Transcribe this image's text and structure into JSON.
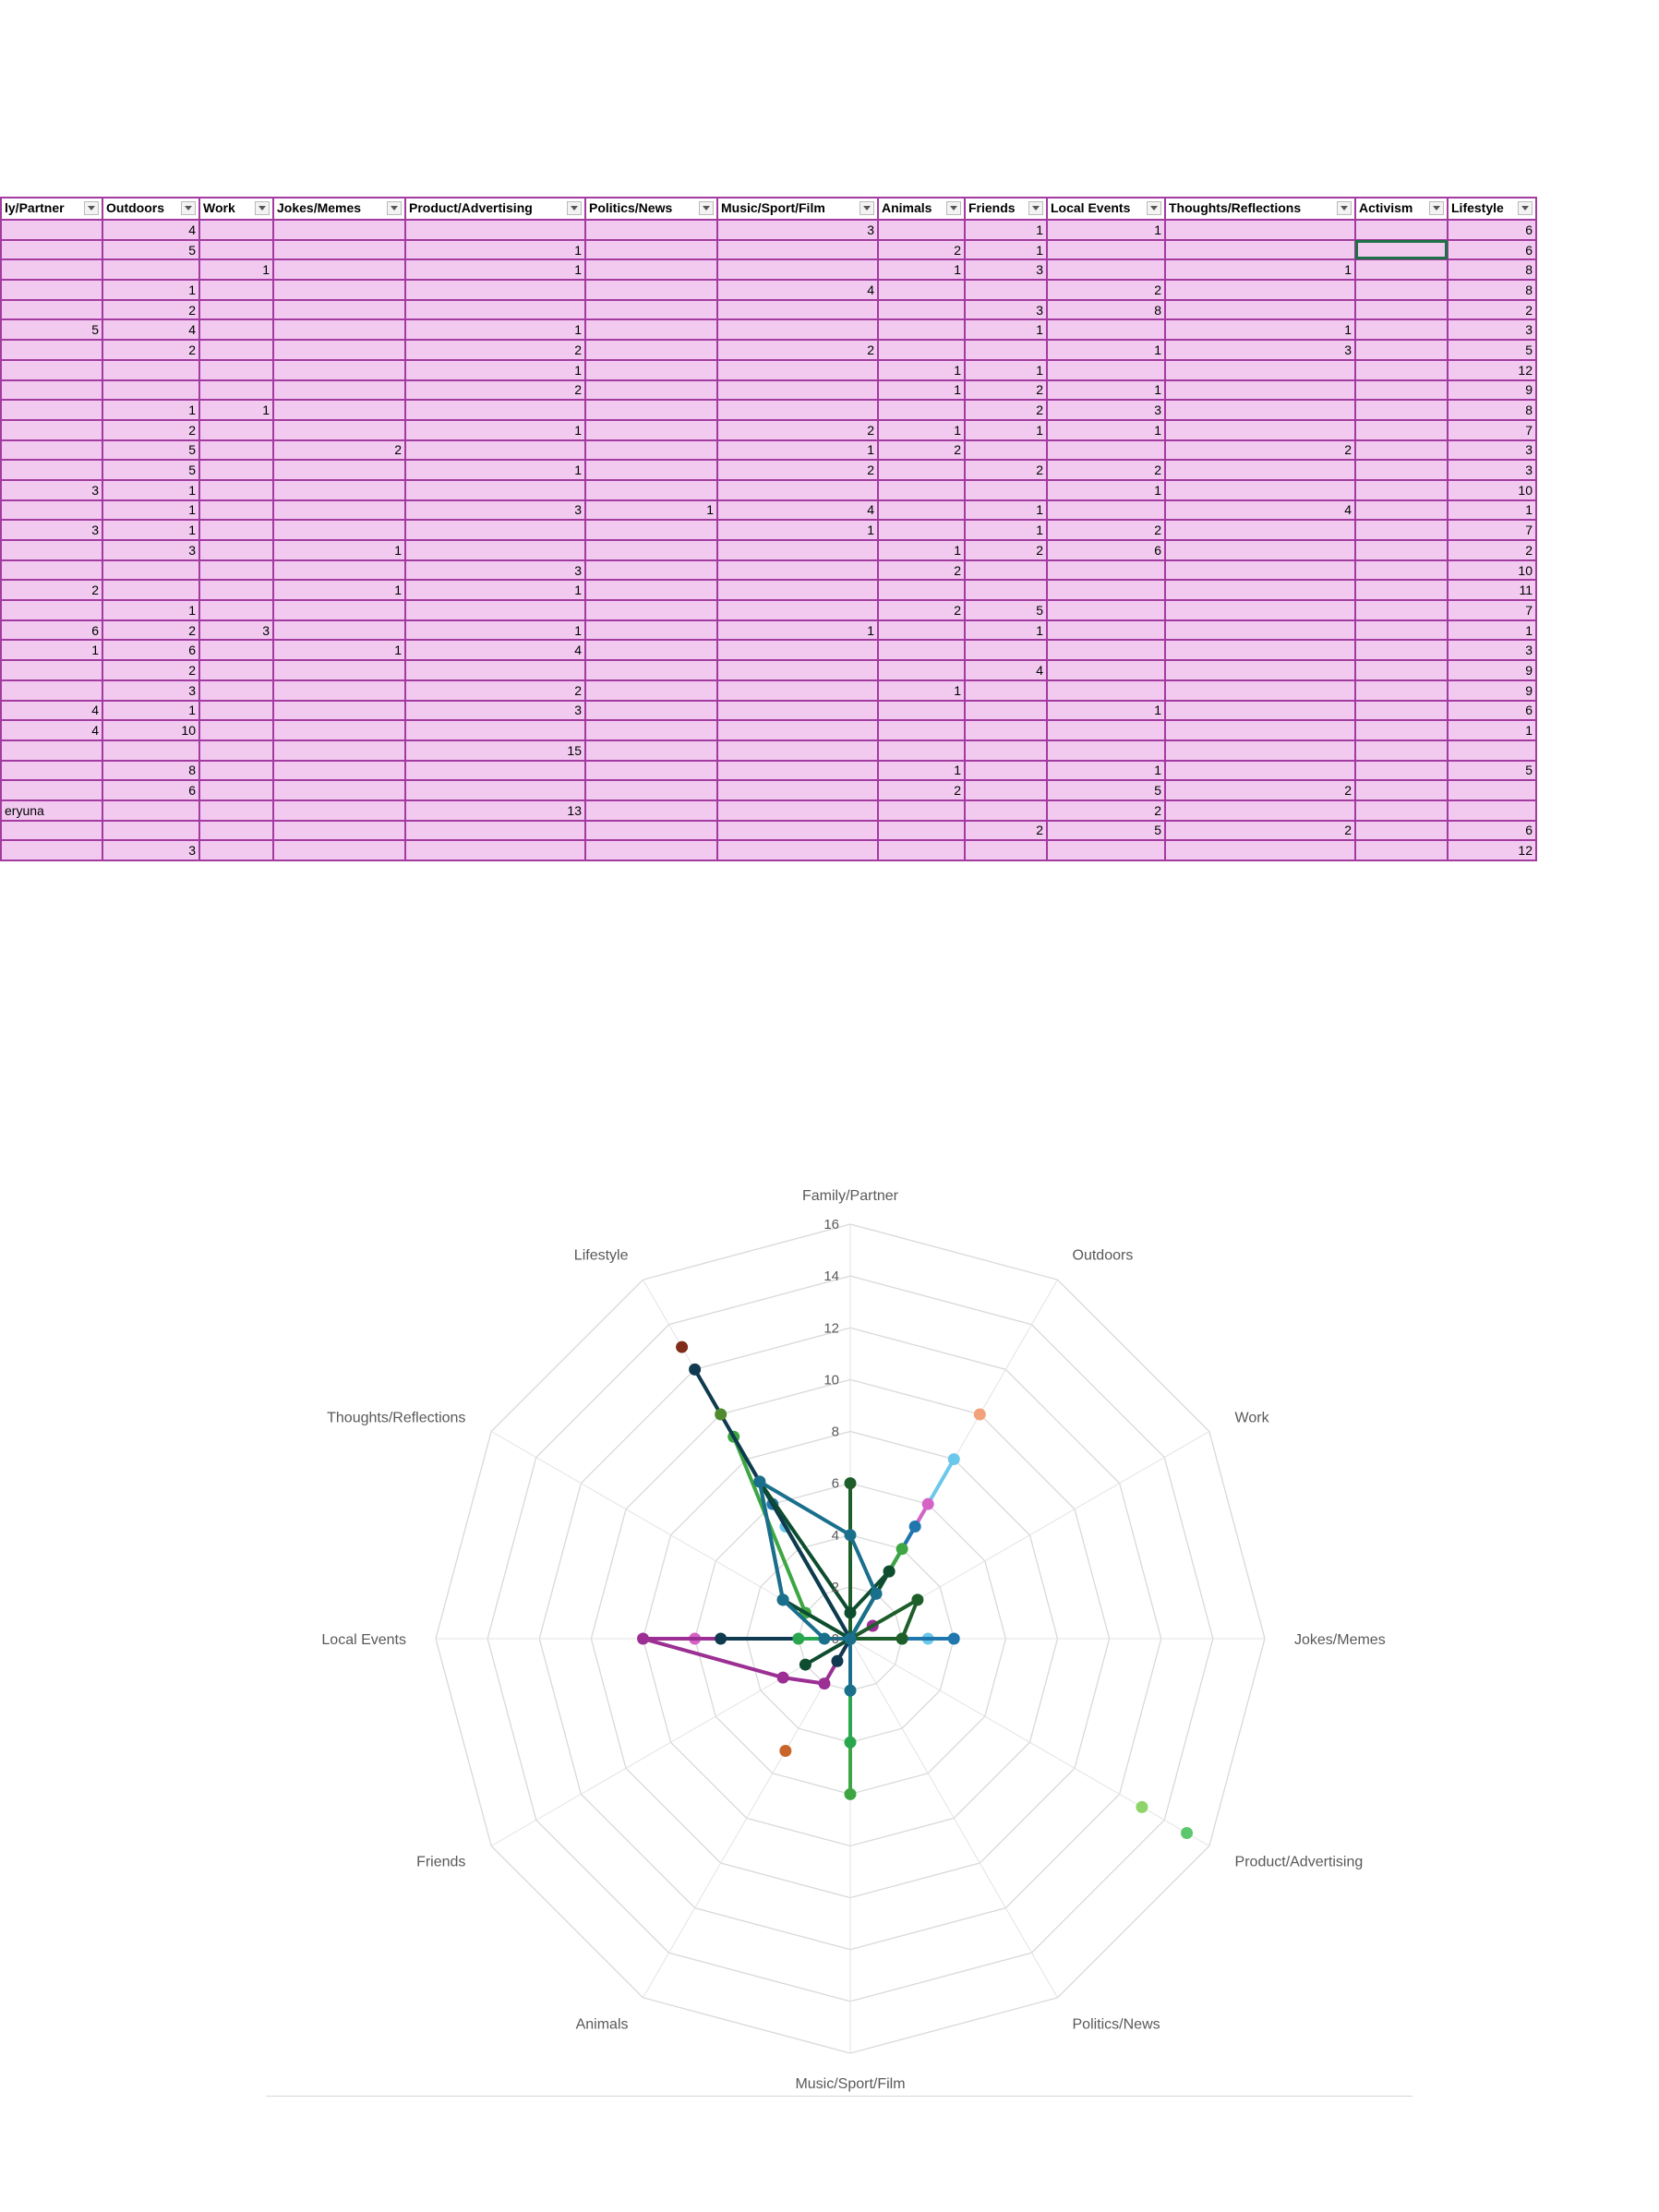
{
  "sheet": {
    "headers": [
      "ly/Partner",
      "Outdoors",
      "Work",
      "Jokes/Memes",
      "Product/Advertising",
      "Politics/News",
      "Music/Sport/Film",
      "Animals",
      "Friends",
      "Local Events",
      "Thoughts/Reflections",
      "Activism",
      "Lifestyle"
    ],
    "rows": [
      [
        "",
        "4",
        "",
        "",
        "",
        "",
        "3",
        "",
        "1",
        "1",
        "",
        "",
        "6"
      ],
      [
        "",
        "5",
        "",
        "",
        "1",
        "",
        "",
        "2",
        "1",
        "",
        "",
        "",
        "6"
      ],
      [
        "",
        "",
        "1",
        "",
        "1",
        "",
        "",
        "1",
        "3",
        "",
        "1",
        "",
        "8"
      ],
      [
        "",
        "1",
        "",
        "",
        "",
        "",
        "4",
        "",
        "",
        "2",
        "",
        "",
        "8"
      ],
      [
        "",
        "2",
        "",
        "",
        "",
        "",
        "",
        "",
        "3",
        "8",
        "",
        "",
        "2"
      ],
      [
        "5",
        "4",
        "",
        "",
        "1",
        "",
        "",
        "",
        "1",
        "",
        "1",
        "",
        "3"
      ],
      [
        "",
        "2",
        "",
        "",
        "2",
        "",
        "2",
        "",
        "",
        "1",
        "3",
        "",
        "5"
      ],
      [
        "",
        "",
        "",
        "",
        "1",
        "",
        "",
        "1",
        "1",
        "",
        "",
        "",
        "12"
      ],
      [
        "",
        "",
        "",
        "",
        "2",
        "",
        "",
        "1",
        "2",
        "1",
        "",
        "",
        "9"
      ],
      [
        "",
        "1",
        "1",
        "",
        "",
        "",
        "",
        "",
        "2",
        "3",
        "",
        "",
        "8"
      ],
      [
        "",
        "2",
        "",
        "",
        "1",
        "",
        "2",
        "1",
        "1",
        "1",
        "",
        "",
        "7"
      ],
      [
        "",
        "5",
        "",
        "2",
        "",
        "",
        "1",
        "2",
        "",
        "",
        "2",
        "",
        "3"
      ],
      [
        "",
        "5",
        "",
        "",
        "1",
        "",
        "2",
        "",
        "2",
        "2",
        "",
        "",
        "3"
      ],
      [
        "3",
        "1",
        "",
        "",
        "",
        "",
        "",
        "",
        "",
        "1",
        "",
        "",
        "10"
      ],
      [
        "",
        "1",
        "",
        "",
        "3",
        "1",
        "4",
        "",
        "1",
        "",
        "4",
        "",
        "1"
      ],
      [
        "3",
        "1",
        "",
        "",
        "",
        "",
        "1",
        "",
        "1",
        "2",
        "",
        "",
        "7"
      ],
      [
        "",
        "3",
        "",
        "1",
        "",
        "",
        "",
        "1",
        "2",
        "6",
        "",
        "",
        "2"
      ],
      [
        "",
        "",
        "",
        "",
        "3",
        "",
        "",
        "2",
        "",
        "",
        "",
        "",
        "10"
      ],
      [
        "2",
        "",
        "",
        "1",
        "1",
        "",
        "",
        "",
        "",
        "",
        "",
        "",
        "11"
      ],
      [
        "",
        "1",
        "",
        "",
        "",
        "",
        "",
        "2",
        "5",
        "",
        "",
        "",
        "7"
      ],
      [
        "6",
        "2",
        "3",
        "",
        "1",
        "",
        "1",
        "",
        "1",
        "",
        "",
        "",
        "1"
      ],
      [
        "1",
        "6",
        "",
        "1",
        "4",
        "",
        "",
        "",
        "",
        "",
        "",
        "",
        "3"
      ],
      [
        "",
        "2",
        "",
        "",
        "",
        "",
        "",
        "",
        "4",
        "",
        "",
        "",
        "9"
      ],
      [
        "",
        "3",
        "",
        "",
        "2",
        "",
        "",
        "1",
        "",
        "",
        "",
        "",
        "9"
      ],
      [
        "4",
        "1",
        "",
        "",
        "3",
        "",
        "",
        "",
        "",
        "1",
        "",
        "",
        "6"
      ],
      [
        "4",
        "10",
        "",
        "",
        "",
        "",
        "",
        "",
        "",
        "",
        "",
        "",
        "1"
      ],
      [
        "",
        "",
        "",
        "",
        "15",
        "",
        "",
        "",
        "",
        "",
        "",
        "",
        ""
      ],
      [
        "",
        "8",
        "",
        "",
        "",
        "",
        "",
        "1",
        "",
        "1",
        "",
        "",
        "5"
      ],
      [
        "",
        "6",
        "",
        "",
        "",
        "",
        "",
        "2",
        "",
        "5",
        "2",
        "",
        ""
      ],
      [
        "eryuna",
        "",
        "",
        "",
        "13",
        "",
        "",
        "",
        "",
        "2",
        "",
        "",
        ""
      ],
      [
        "",
        "",
        "",
        "",
        "",
        "",
        "",
        "",
        "2",
        "5",
        "2",
        "",
        "6"
      ],
      [
        "",
        "3",
        "",
        "",
        "",
        "",
        "",
        "",
        "",
        "",
        "",
        "",
        "12"
      ]
    ],
    "selected_cell": {
      "row": 1,
      "col": 11
    }
  },
  "chart_data": {
    "type": "radar",
    "categories": [
      "Family/Partner",
      "Outdoors",
      "Work",
      "Jokes/Memes",
      "Product/Advertising",
      "Politics/News",
      "Music/Sport/Film",
      "Animals",
      "Friends",
      "Local Events",
      "Thoughts/Reflections",
      "Lifestyle"
    ],
    "ticks": [
      0,
      2,
      4,
      6,
      8,
      10,
      12,
      14,
      16
    ],
    "rmax": 16,
    "grid": true,
    "legend": "none",
    "series": [
      {
        "color": "#f2a27a",
        "values": [
          0,
          10,
          0,
          0,
          0,
          0,
          0,
          0,
          0,
          0,
          0,
          0
        ]
      },
      {
        "color": "#6cc8ea",
        "values": [
          0,
          8,
          0,
          3,
          0,
          0,
          0,
          0,
          0,
          0,
          0,
          5
        ]
      },
      {
        "color": "#d563c6",
        "values": [
          0,
          6,
          0,
          0,
          0,
          0,
          0,
          1,
          0,
          6,
          0,
          0
        ]
      },
      {
        "color": "#1f77ad",
        "values": [
          0,
          5,
          0,
          4,
          0,
          0,
          0,
          0,
          0,
          0,
          0,
          6
        ]
      },
      {
        "color": "#3da643",
        "values": [
          0,
          4,
          0,
          2,
          0,
          0,
          6,
          0,
          0,
          0,
          2,
          9
        ]
      },
      {
        "color": "#9b2f93",
        "values": [
          0,
          0,
          1,
          0,
          0,
          0,
          0,
          2,
          3,
          8,
          0,
          0
        ]
      },
      {
        "color": "#1d5e2a",
        "values": [
          6,
          0,
          3,
          2,
          0,
          0,
          0,
          0,
          0,
          0,
          0,
          0
        ]
      },
      {
        "color": "#0f3a4f",
        "values": [
          0,
          0,
          0,
          0,
          0,
          0,
          0,
          1,
          0,
          5,
          0,
          12
        ]
      },
      {
        "color": "#c9652a",
        "values": [
          0,
          0,
          0,
          0,
          0,
          0,
          0,
          5,
          0,
          0,
          0,
          0
        ]
      },
      {
        "color": "#7f2d1a",
        "values": [
          0,
          0,
          0,
          0,
          0,
          0,
          0,
          0,
          0,
          0,
          0,
          13
        ]
      },
      {
        "color": "#4f8a2e",
        "values": [
          0,
          0,
          0,
          0,
          0,
          0,
          0,
          0,
          0,
          0,
          0,
          10
        ]
      },
      {
        "color": "#8fd46a",
        "values": [
          0,
          0,
          0,
          0,
          13,
          0,
          0,
          0,
          0,
          0,
          0,
          0
        ]
      },
      {
        "color": "#5cc76b",
        "values": [
          0,
          0,
          0,
          0,
          15,
          0,
          0,
          0,
          0,
          0,
          0,
          0
        ]
      },
      {
        "color": "#28a74e",
        "values": [
          0,
          3,
          0,
          0,
          0,
          0,
          4,
          0,
          0,
          2,
          0,
          0
        ]
      },
      {
        "color": "#0e4d2f",
        "values": [
          1,
          3,
          0,
          0,
          0,
          0,
          0,
          0,
          2,
          0,
          3,
          7
        ]
      },
      {
        "color": "#1a6f8c",
        "values": [
          4,
          2,
          0,
          0,
          0,
          0,
          2,
          0,
          0,
          1,
          3,
          7
        ]
      }
    ]
  }
}
